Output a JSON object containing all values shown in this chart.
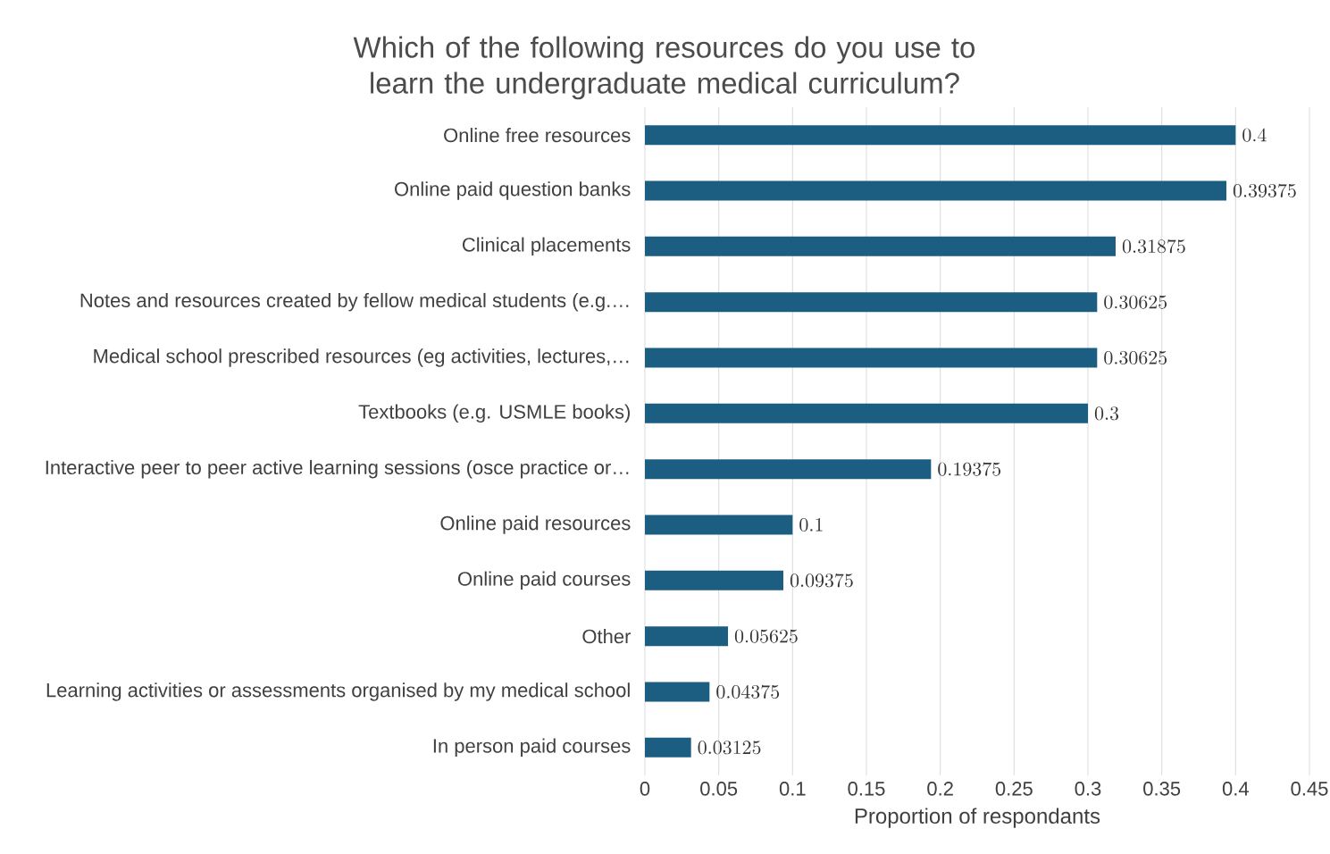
{
  "chart_data": {
    "type": "bar",
    "orientation": "horizontal",
    "title": "Which of the following resources do you use to learn the undergraduate medical curriculum?",
    "xlabel": "Proportion of respondants",
    "categories": [
      "Online free resources",
      "Online paid question banks",
      "Clinical placements",
      "Notes and resources created by fellow medical students (e.g.…",
      "Medical school prescribed resources (eg activities, lectures,…",
      "Textbooks (e.g. USMLE books)",
      "Interactive peer to peer active learning sessions (osce practice or…",
      "Online paid resources",
      "Online paid courses",
      "Other",
      "Learning activities or assessments organised by my medical school",
      "In person paid courses"
    ],
    "values": [
      0.4,
      0.39375,
      0.31875,
      0.30625,
      0.30625,
      0.3,
      0.19375,
      0.1,
      0.09375,
      0.05625,
      0.04375,
      0.03125
    ],
    "color": "#1b5e82",
    "xlim": [
      0,
      0.45
    ],
    "xticks": [
      0,
      0.05,
      0.1,
      0.15,
      0.2,
      0.25,
      0.3,
      0.35,
      0.4,
      0.45
    ],
    "grid": "x",
    "data_labels": true
  }
}
